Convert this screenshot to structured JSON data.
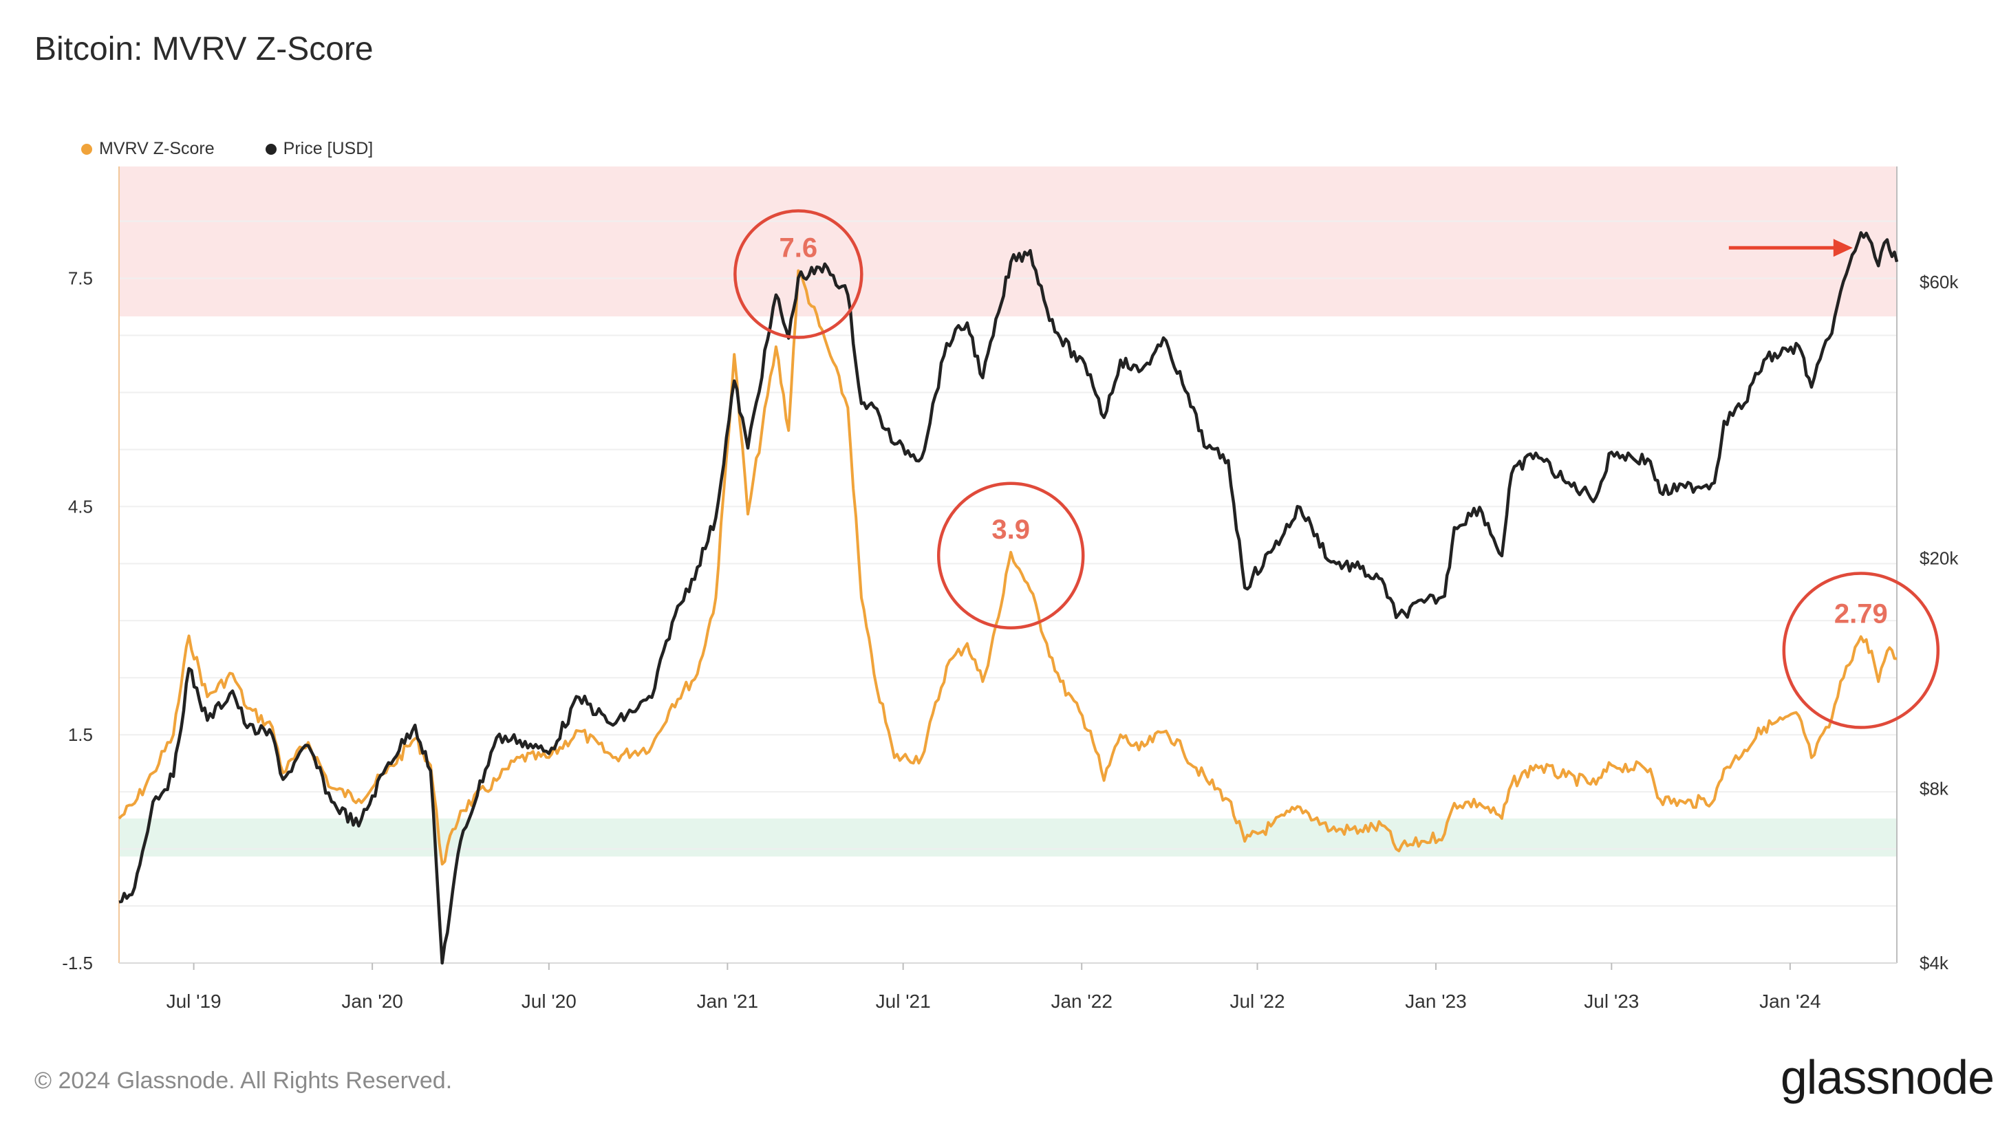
{
  "header": {
    "title": "Bitcoin: MVRV Z-Score"
  },
  "legend": [
    {
      "label": "MVRV Z-Score",
      "color": "#F0A33A"
    },
    {
      "label": "Price [USD]",
      "color": "#222222"
    }
  ],
  "footer": {
    "copyright": "© 2024 Glassnode. All Rights Reserved.",
    "brand": "glassnode"
  },
  "chart_data": {
    "type": "line",
    "title": "Bitcoin: MVRV Z-Score",
    "x_range": [
      "2019-04-15",
      "2024-04-20"
    ],
    "x_tick_labels": [
      {
        "date": "2019-07-01",
        "label": "Jul '19"
      },
      {
        "date": "2020-01-01",
        "label": "Jan '20"
      },
      {
        "date": "2020-07-01",
        "label": "Jul '20"
      },
      {
        "date": "2021-01-01",
        "label": "Jan '21"
      },
      {
        "date": "2021-07-01",
        "label": "Jul '21"
      },
      {
        "date": "2022-01-01",
        "label": "Jan '22"
      },
      {
        "date": "2022-07-01",
        "label": "Jul '22"
      },
      {
        "date": "2023-01-01",
        "label": "Jan '23"
      },
      {
        "date": "2023-07-01",
        "label": "Jul '23"
      },
      {
        "date": "2024-01-01",
        "label": "Jan '24"
      }
    ],
    "y_left": {
      "range": [
        -1.5,
        8.97
      ],
      "ticks": [
        7.5,
        4.5,
        1.5,
        -1.5
      ],
      "tick_labels": [
        "7.5",
        "4.5",
        "1.5",
        "-1.5"
      ]
    },
    "y_right": {
      "scale": "log",
      "range": [
        4000,
        95000
      ],
      "ticks": [
        60000,
        20000,
        8000,
        4000
      ],
      "tick_labels": [
        "$60k",
        "$20k",
        "$8k",
        "$4k"
      ]
    },
    "zones": [
      {
        "name": "overvalued",
        "from": 7.0,
        "to": 8.97,
        "color": "#FCE6E6"
      },
      {
        "name": "undervalued",
        "from": -0.1,
        "to": 0.4,
        "color": "#E5F5EC"
      }
    ],
    "grid": true,
    "legend_position": "top-left",
    "series": [
      {
        "name": "MVRV Z-Score",
        "color": "#F0A33A",
        "points": [
          [
            "2019-04-15",
            0.4
          ],
          [
            "2019-05-01",
            0.6
          ],
          [
            "2019-05-20",
            1.0
          ],
          [
            "2019-06-10",
            1.5
          ],
          [
            "2019-06-26",
            2.8
          ],
          [
            "2019-07-15",
            2.0
          ],
          [
            "2019-08-10",
            2.3
          ],
          [
            "2019-08-25",
            1.85
          ],
          [
            "2019-09-20",
            1.6
          ],
          [
            "2019-10-01",
            1.0
          ],
          [
            "2019-10-27",
            1.4
          ],
          [
            "2019-11-20",
            0.8
          ],
          [
            "2019-12-18",
            0.65
          ],
          [
            "2020-01-15",
            1.0
          ],
          [
            "2020-02-14",
            1.45
          ],
          [
            "2020-03-01",
            1.1
          ],
          [
            "2020-03-13",
            -0.2
          ],
          [
            "2020-04-01",
            0.5
          ],
          [
            "2020-05-08",
            0.9
          ],
          [
            "2020-06-01",
            1.2
          ],
          [
            "2020-07-01",
            1.2
          ],
          [
            "2020-08-01",
            1.55
          ],
          [
            "2020-09-05",
            1.2
          ],
          [
            "2020-10-15",
            1.35
          ],
          [
            "2020-11-05",
            1.9
          ],
          [
            "2020-12-01",
            2.3
          ],
          [
            "2020-12-20",
            3.3
          ],
          [
            "2021-01-08",
            6.5
          ],
          [
            "2021-01-22",
            4.4
          ],
          [
            "2021-02-20",
            6.6
          ],
          [
            "2021-03-05",
            5.5
          ],
          [
            "2021-03-15",
            7.6
          ],
          [
            "2021-04-14",
            6.6
          ],
          [
            "2021-05-05",
            5.8
          ],
          [
            "2021-05-19",
            3.3
          ],
          [
            "2021-06-01",
            2.3
          ],
          [
            "2021-06-22",
            1.2
          ],
          [
            "2021-07-20",
            1.2
          ],
          [
            "2021-08-15",
            2.4
          ],
          [
            "2021-09-05",
            2.7
          ],
          [
            "2021-09-21",
            2.2
          ],
          [
            "2021-10-10",
            3.2
          ],
          [
            "2021-10-20",
            3.9
          ],
          [
            "2021-11-09",
            3.4
          ],
          [
            "2021-11-26",
            2.7
          ],
          [
            "2021-12-10",
            2.2
          ],
          [
            "2022-01-10",
            1.55
          ],
          [
            "2022-01-24",
            0.9
          ],
          [
            "2022-02-10",
            1.5
          ],
          [
            "2022-03-01",
            1.3
          ],
          [
            "2022-03-29",
            1.55
          ],
          [
            "2022-04-15",
            1.3
          ],
          [
            "2022-05-10",
            0.9
          ],
          [
            "2022-06-01",
            0.65
          ],
          [
            "2022-06-18",
            0.1
          ],
          [
            "2022-07-15",
            0.3
          ],
          [
            "2022-08-14",
            0.55
          ],
          [
            "2022-09-15",
            0.25
          ],
          [
            "2022-10-15",
            0.25
          ],
          [
            "2022-11-09",
            0.3
          ],
          [
            "2022-11-21",
            0.0
          ],
          [
            "2022-12-20",
            0.1
          ],
          [
            "2023-01-10",
            0.2
          ],
          [
            "2023-01-20",
            0.6
          ],
          [
            "2023-02-15",
            0.6
          ],
          [
            "2023-03-10",
            0.4
          ],
          [
            "2023-03-20",
            0.85
          ],
          [
            "2023-04-14",
            1.1
          ],
          [
            "2023-05-15",
            0.95
          ],
          [
            "2023-06-15",
            0.85
          ],
          [
            "2023-07-01",
            1.1
          ],
          [
            "2023-08-10",
            1.05
          ],
          [
            "2023-08-20",
            0.65
          ],
          [
            "2023-09-15",
            0.6
          ],
          [
            "2023-10-15",
            0.65
          ],
          [
            "2023-10-25",
            1.05
          ],
          [
            "2023-11-15",
            1.3
          ],
          [
            "2023-12-05",
            1.6
          ],
          [
            "2024-01-10",
            1.75
          ],
          [
            "2024-01-23",
            1.2
          ],
          [
            "2024-02-10",
            1.6
          ],
          [
            "2024-02-28",
            2.4
          ],
          [
            "2024-03-14",
            2.79
          ],
          [
            "2024-03-25",
            2.6
          ],
          [
            "2024-04-01",
            2.2
          ],
          [
            "2024-04-10",
            2.6
          ],
          [
            "2024-04-20",
            2.5
          ]
        ]
      },
      {
        "name": "Price [USD]",
        "color": "#222222",
        "points": [
          [
            "2019-04-15",
            5100
          ],
          [
            "2019-05-01",
            5400
          ],
          [
            "2019-05-20",
            7600
          ],
          [
            "2019-06-10",
            8400
          ],
          [
            "2019-06-26",
            12900
          ],
          [
            "2019-07-15",
            10500
          ],
          [
            "2019-08-10",
            11800
          ],
          [
            "2019-08-25",
            10200
          ],
          [
            "2019-09-20",
            9900
          ],
          [
            "2019-10-01",
            8300
          ],
          [
            "2019-10-27",
            9500
          ],
          [
            "2019-11-20",
            7600
          ],
          [
            "2019-12-18",
            6900
          ],
          [
            "2020-01-15",
            8700
          ],
          [
            "2020-02-14",
            10300
          ],
          [
            "2020-03-01",
            8600
          ],
          [
            "2020-03-13",
            4000
          ],
          [
            "2020-04-01",
            6500
          ],
          [
            "2020-05-08",
            9800
          ],
          [
            "2020-06-01",
            9700
          ],
          [
            "2020-07-01",
            9200
          ],
          [
            "2020-08-01",
            11500
          ],
          [
            "2020-09-05",
            10300
          ],
          [
            "2020-10-15",
            11500
          ],
          [
            "2020-11-05",
            15500
          ],
          [
            "2020-12-01",
            19300
          ],
          [
            "2020-12-20",
            23500
          ],
          [
            "2021-01-08",
            40500
          ],
          [
            "2021-01-22",
            31000
          ],
          [
            "2021-02-20",
            57000
          ],
          [
            "2021-03-05",
            48000
          ],
          [
            "2021-03-15",
            61000
          ],
          [
            "2021-04-14",
            63500
          ],
          [
            "2021-05-05",
            57000
          ],
          [
            "2021-05-19",
            37000
          ],
          [
            "2021-06-01",
            36500
          ],
          [
            "2021-06-22",
            31500
          ],
          [
            "2021-07-20",
            29800
          ],
          [
            "2021-08-15",
            47000
          ],
          [
            "2021-09-05",
            51000
          ],
          [
            "2021-09-21",
            41000
          ],
          [
            "2021-10-10",
            55000
          ],
          [
            "2021-10-20",
            65000
          ],
          [
            "2021-11-09",
            68000
          ],
          [
            "2021-11-26",
            54000
          ],
          [
            "2021-12-10",
            48000
          ],
          [
            "2022-01-10",
            41500
          ],
          [
            "2022-01-24",
            35000
          ],
          [
            "2022-02-10",
            44000
          ],
          [
            "2022-03-01",
            42000
          ],
          [
            "2022-03-29",
            47500
          ],
          [
            "2022-04-15",
            40000
          ],
          [
            "2022-05-10",
            31000
          ],
          [
            "2022-06-01",
            29500
          ],
          [
            "2022-06-18",
            17800
          ],
          [
            "2022-07-15",
            20500
          ],
          [
            "2022-08-14",
            24500
          ],
          [
            "2022-09-15",
            19700
          ],
          [
            "2022-10-15",
            19200
          ],
          [
            "2022-11-09",
            18000
          ],
          [
            "2022-11-21",
            15800
          ],
          [
            "2022-12-20",
            16800
          ],
          [
            "2023-01-10",
            17200
          ],
          [
            "2023-01-20",
            22600
          ],
          [
            "2023-02-15",
            24500
          ],
          [
            "2023-03-10",
            20200
          ],
          [
            "2023-03-20",
            28000
          ],
          [
            "2023-04-14",
            30400
          ],
          [
            "2023-05-15",
            27000
          ],
          [
            "2023-06-15",
            25500
          ],
          [
            "2023-07-01",
            30500
          ],
          [
            "2023-08-10",
            29400
          ],
          [
            "2023-08-20",
            26000
          ],
          [
            "2023-09-15",
            26500
          ],
          [
            "2023-10-15",
            27000
          ],
          [
            "2023-10-25",
            34500
          ],
          [
            "2023-11-15",
            37000
          ],
          [
            "2023-12-05",
            44000
          ],
          [
            "2024-01-10",
            46500
          ],
          [
            "2024-01-23",
            39500
          ],
          [
            "2024-02-10",
            48000
          ],
          [
            "2024-02-28",
            62000
          ],
          [
            "2024-03-14",
            73000
          ],
          [
            "2024-03-25",
            70000
          ],
          [
            "2024-04-01",
            64000
          ],
          [
            "2024-04-10",
            71000
          ],
          [
            "2024-04-20",
            65000
          ]
        ]
      }
    ],
    "annotations": [
      {
        "label": "7.6",
        "date": "2021-03-15",
        "value": 7.6,
        "type": "circle"
      },
      {
        "label": "3.9",
        "date": "2021-10-20",
        "value": 3.9,
        "type": "circle"
      },
      {
        "label": "2.79",
        "date": "2024-03-14",
        "value": 2.79,
        "type": "circle"
      },
      {
        "type": "arrow",
        "target": "price",
        "date": "2024-03-14",
        "color": "#E8442E"
      }
    ]
  }
}
